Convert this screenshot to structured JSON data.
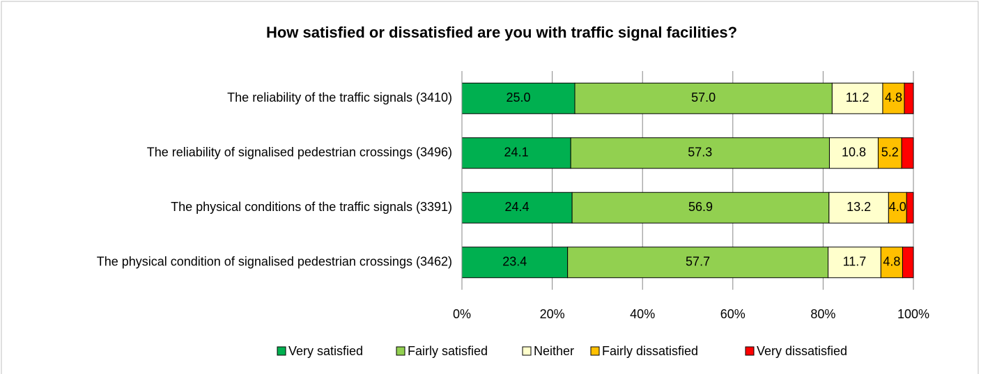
{
  "chart_data": {
    "type": "stacked_barh",
    "title": "How satisfied or dissatisfied are you with traffic signal facilities?",
    "categories": [
      "The reliability of the traffic signals (3410)",
      "The reliability of signalised pedestrian crossings (3496)",
      "The physical conditions of the traffic signals (3391)",
      "The physical condition of signalised pedestrian crossings (3462)"
    ],
    "series": [
      {
        "name": "Very satisfied",
        "color": "#00b050",
        "values": [
          25.0,
          24.1,
          24.4,
          23.4
        ],
        "value_labels": [
          "25.0",
          "24.1",
          "24.4",
          "23.4"
        ]
      },
      {
        "name": "Fairly satisfied",
        "color": "#92d050",
        "values": [
          57.0,
          57.3,
          56.9,
          57.7
        ],
        "value_labels": [
          "57.0",
          "57.3",
          "56.9",
          "57.7"
        ]
      },
      {
        "name": "Neither",
        "color": "#ffffcc",
        "values": [
          11.2,
          10.8,
          13.2,
          11.7
        ],
        "value_labels": [
          "11.2",
          "10.8",
          "13.2",
          "11.7"
        ]
      },
      {
        "name": "Fairly dissatisfied",
        "color": "#ffc000",
        "values": [
          4.8,
          5.2,
          4.0,
          4.8
        ],
        "value_labels": [
          "4.8",
          "5.2",
          "4.0",
          "4.8"
        ]
      },
      {
        "name": "Very dissatisfied",
        "color": "#ff0000",
        "values": [
          2.0,
          2.6,
          1.5,
          2.4
        ],
        "value_labels": [
          null,
          null,
          null,
          null
        ]
      }
    ],
    "xlim": [
      0,
      100
    ],
    "xticks": [
      {
        "value": 0,
        "label": "0%"
      },
      {
        "value": 20,
        "label": "20%"
      },
      {
        "value": 40,
        "label": "40%"
      },
      {
        "value": 60,
        "label": "60%"
      },
      {
        "value": 80,
        "label": "80%"
      },
      {
        "value": 100,
        "label": "100%"
      }
    ],
    "grid": true,
    "legend": "bottom"
  }
}
